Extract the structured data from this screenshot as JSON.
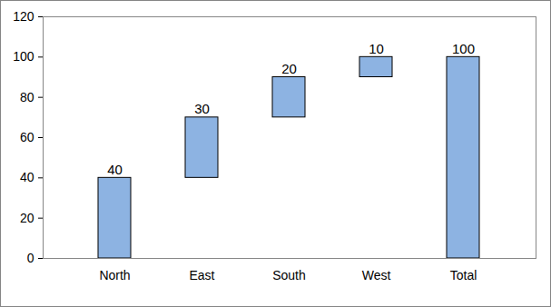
{
  "chart_data": {
    "type": "waterfall",
    "categories": [
      "North",
      "East",
      "South",
      "West",
      "Total"
    ],
    "values": [
      40,
      30,
      20,
      10,
      100
    ],
    "color": "#8db3e2",
    "ylim": [
      0,
      120
    ],
    "yticks": [
      0,
      20,
      40,
      60,
      80,
      100,
      120
    ],
    "grid": false,
    "data_labels": true
  }
}
